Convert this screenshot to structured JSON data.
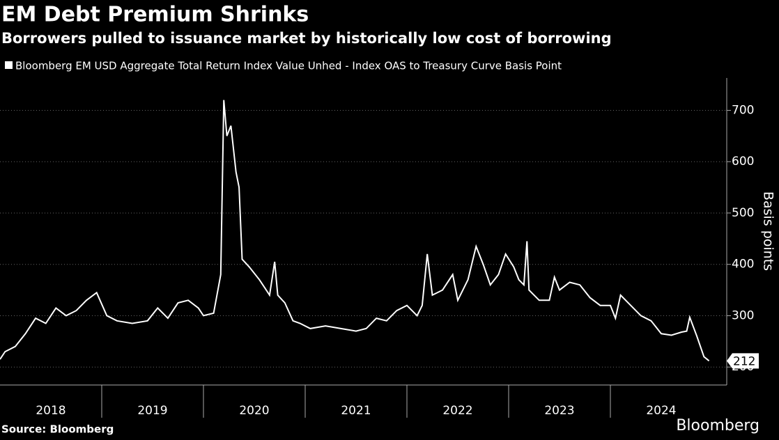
{
  "chart_data": {
    "type": "line",
    "title": "EM Debt Premium Shrinks",
    "subtitle": "Borrowers pulled to issuance market by historically low cost of borrowing",
    "y_label": "Basis points",
    "source": "Source: Bloomberg",
    "brand": "Bloomberg",
    "x": [
      2018.0,
      2018.05,
      2018.15,
      2018.25,
      2018.35,
      2018.45,
      2018.55,
      2018.65,
      2018.75,
      2018.85,
      2018.95,
      2019.05,
      2019.15,
      2019.3,
      2019.45,
      2019.55,
      2019.65,
      2019.75,
      2019.85,
      2019.95,
      2020.0,
      2020.1,
      2020.17,
      2020.2,
      2020.23,
      2020.27,
      2020.32,
      2020.35,
      2020.38,
      2020.45,
      2020.55,
      2020.65,
      2020.7,
      2020.73,
      2020.8,
      2020.88,
      2020.95,
      2021.05,
      2021.2,
      2021.35,
      2021.5,
      2021.6,
      2021.7,
      2021.8,
      2021.9,
      2022.0,
      2022.1,
      2022.15,
      2022.2,
      2022.25,
      2022.35,
      2022.45,
      2022.5,
      2022.6,
      2022.68,
      2022.75,
      2022.82,
      2022.9,
      2022.97,
      2023.05,
      2023.1,
      2023.15,
      2023.18,
      2023.2,
      2023.3,
      2023.4,
      2023.45,
      2023.5,
      2023.6,
      2023.7,
      2023.8,
      2023.9,
      2024.0,
      2024.05,
      2024.1,
      2024.2,
      2024.3,
      2024.4,
      2024.5,
      2024.6,
      2024.7,
      2024.75,
      2024.78,
      2024.85,
      2024.92,
      2024.97
    ],
    "series": [
      {
        "name": "Bloomberg EM USD Aggregate Total Return Index Value Unhed - Index OAS to Treasury Curve Basis Point",
        "color": "#ffffff",
        "values": [
          215,
          230,
          240,
          265,
          295,
          285,
          315,
          300,
          310,
          330,
          345,
          300,
          290,
          285,
          290,
          315,
          295,
          325,
          330,
          315,
          300,
          305,
          380,
          720,
          650,
          670,
          580,
          550,
          410,
          395,
          370,
          340,
          405,
          340,
          325,
          290,
          285,
          275,
          280,
          275,
          270,
          275,
          295,
          290,
          310,
          320,
          300,
          320,
          420,
          340,
          350,
          380,
          330,
          370,
          435,
          400,
          360,
          380,
          420,
          395,
          370,
          360,
          445,
          350,
          330,
          330,
          375,
          350,
          365,
          360,
          335,
          320,
          320,
          295,
          340,
          320,
          300,
          290,
          265,
          262,
          268,
          270,
          297,
          260,
          220,
          212
        ]
      }
    ],
    "xlim": [
      2018,
      2025
    ],
    "xticks": [
      {
        "value": 2018.5,
        "label": "2018"
      },
      {
        "value": 2019.5,
        "label": "2019"
      },
      {
        "value": 2020.5,
        "label": "2020"
      },
      {
        "value": 2021.5,
        "label": "2021"
      },
      {
        "value": 2022.5,
        "label": "2022"
      },
      {
        "value": 2023.5,
        "label": "2023"
      },
      {
        "value": 2024.5,
        "label": "2024"
      }
    ],
    "ylim": [
      165,
      763
    ],
    "yticks": [
      200,
      300,
      400,
      500,
      600,
      700
    ],
    "grid": true
  }
}
